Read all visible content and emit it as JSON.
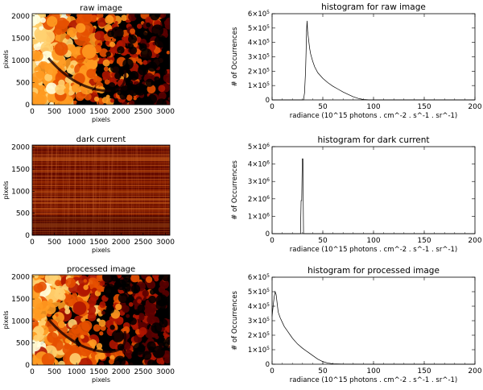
{
  "chart_data": [
    {
      "type": "heatmap",
      "title": "raw image",
      "xlabel": "pixels",
      "ylabel": "pixels",
      "xlim": [
        0,
        3100
      ],
      "ylim": [
        0,
        2050
      ],
      "x_ticks": [
        "0",
        "500",
        "1000",
        "1500",
        "2000",
        "2500",
        "3000"
      ],
      "y_ticks": [
        "0",
        "500",
        "1000",
        "1500",
        "2000"
      ],
      "colormap": [
        "#000000",
        "#5a0000",
        "#b01500",
        "#e65000",
        "#ff9a20",
        "#ffd070",
        "#ffffe0"
      ],
      "texture": "bright"
    },
    {
      "type": "line",
      "title": "histogram for raw image",
      "xlabel": "radiance (10^15 photons . cm^-2 . s^-1 . sr^-1)",
      "ylabel": "# of Occurrences",
      "xlim": [
        0,
        200
      ],
      "ylim": [
        0,
        600000
      ],
      "x_ticks": [
        0,
        50,
        100,
        150,
        200
      ],
      "y_ticks": [
        {
          "value": 0,
          "mantissa": "0",
          "exp": ""
        },
        {
          "value": 100000,
          "mantissa": "1×10",
          "exp": "5"
        },
        {
          "value": 200000,
          "mantissa": "2×10",
          "exp": "5"
        },
        {
          "value": 300000,
          "mantissa": "3×10",
          "exp": "5"
        },
        {
          "value": 400000,
          "mantissa": "4×10",
          "exp": "5"
        },
        {
          "value": 500000,
          "mantissa": "5×10",
          "exp": "5"
        },
        {
          "value": 600000,
          "mantissa": "6×10",
          "exp": "5"
        }
      ],
      "x": [
        28,
        31,
        32,
        33,
        33.5,
        34,
        34.5,
        35,
        36,
        37,
        38,
        40,
        42,
        45,
        50,
        55,
        60,
        65,
        70,
        75,
        80,
        85,
        90,
        95,
        100
      ],
      "values": [
        0,
        0,
        50000,
        200000,
        330000,
        480000,
        550000,
        480000,
        420000,
        360000,
        320000,
        270000,
        230000,
        190000,
        150000,
        120000,
        95000,
        75000,
        55000,
        38000,
        22000,
        10000,
        3000,
        500,
        0
      ]
    },
    {
      "type": "heatmap",
      "title": "dark current",
      "xlabel": "pixels",
      "ylabel": "pixels",
      "xlim": [
        0,
        3100
      ],
      "ylim": [
        0,
        2050
      ],
      "x_ticks": [
        "0",
        "500",
        "1000",
        "1500",
        "2000",
        "2500",
        "3000"
      ],
      "y_ticks": [
        "0",
        "500",
        "1000",
        "1500",
        "2000"
      ],
      "colormap": [
        "#3a0000",
        "#6e0e00",
        "#9a2800",
        "#b84a10",
        "#d06a30"
      ],
      "texture": "dark"
    },
    {
      "type": "line",
      "title": "histogram for dark current",
      "xlabel": "radiance (10^15 photons . cm^-2 . s^-1 . sr^-1)",
      "ylabel": "# of Occurrences",
      "xlim": [
        0,
        200
      ],
      "ylim": [
        0,
        5000000
      ],
      "x_ticks": [
        0,
        50,
        100,
        150,
        200
      ],
      "y_ticks": [
        {
          "value": 0,
          "mantissa": "0",
          "exp": ""
        },
        {
          "value": 1000000,
          "mantissa": "1×10",
          "exp": "6"
        },
        {
          "value": 2000000,
          "mantissa": "2×10",
          "exp": "6"
        },
        {
          "value": 3000000,
          "mantissa": "3×10",
          "exp": "6"
        },
        {
          "value": 4000000,
          "mantissa": "4×10",
          "exp": "6"
        },
        {
          "value": 5000000,
          "mantissa": "5×10",
          "exp": "6"
        }
      ],
      "x": [
        25,
        27,
        28,
        28.6,
        29.2,
        29.8,
        30.4,
        31,
        32,
        35
      ],
      "values": [
        0,
        0,
        0,
        1900000,
        1900000,
        4300000,
        4300000,
        0,
        0,
        0
      ]
    },
    {
      "type": "heatmap",
      "title": "processed image",
      "xlabel": "pixels",
      "ylabel": "pixels",
      "xlim": [
        0,
        3100
      ],
      "ylim": [
        0,
        2050
      ],
      "x_ticks": [
        "0",
        "500",
        "1000",
        "1500",
        "2000",
        "2500",
        "3000"
      ],
      "y_ticks": [
        "0",
        "500",
        "1000",
        "1500",
        "2000"
      ],
      "colormap": [
        "#000000",
        "#5a0000",
        "#b01500",
        "#e65000",
        "#ff9a20",
        "#ffd070",
        "#ffffe0"
      ],
      "texture": "processed"
    },
    {
      "type": "line",
      "title": "histogram for processed image",
      "xlabel": "radiance (10^15 photons . cm^-2 . s^-1 . sr^-1)",
      "ylabel": "# of Occurrences",
      "xlim": [
        0,
        200
      ],
      "ylim": [
        0,
        600000
      ],
      "x_ticks": [
        0,
        50,
        100,
        150,
        200
      ],
      "y_ticks": [
        {
          "value": 0,
          "mantissa": "0",
          "exp": ""
        },
        {
          "value": 100000,
          "mantissa": "1×10",
          "exp": "5"
        },
        {
          "value": 200000,
          "mantissa": "2×10",
          "exp": "5"
        },
        {
          "value": 300000,
          "mantissa": "3×10",
          "exp": "5"
        },
        {
          "value": 400000,
          "mantissa": "4×10",
          "exp": "5"
        },
        {
          "value": 500000,
          "mantissa": "5×10",
          "exp": "5"
        },
        {
          "value": 600000,
          "mantissa": "6×10",
          "exp": "5"
        }
      ],
      "x": [
        0,
        1,
        2,
        3,
        4,
        5,
        6,
        8,
        10,
        12,
        15,
        18,
        20,
        25,
        30,
        35,
        40,
        45,
        50,
        55,
        60,
        70,
        80,
        90,
        100,
        130,
        160
      ],
      "values": [
        330000,
        400000,
        460000,
        500000,
        480000,
        420000,
        360000,
        320000,
        290000,
        260000,
        230000,
        200000,
        180000,
        140000,
        110000,
        85000,
        60000,
        35000,
        18000,
        8000,
        3000,
        1000,
        500,
        200,
        100,
        20,
        0
      ]
    }
  ]
}
